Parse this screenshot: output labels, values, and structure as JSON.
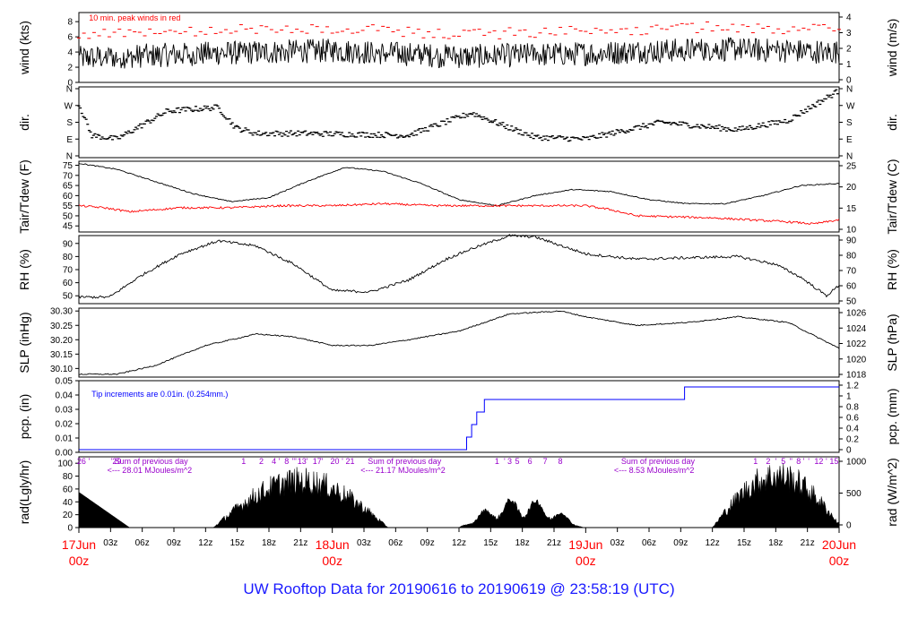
{
  "title": "UW Rooftop Data for 20190616  to  20190619 @ 23:58:19  (UTC)",
  "colors": {
    "trace": "#000000",
    "peak": "#ff0000",
    "dew": "#ff0000",
    "pcp": "#0000ff",
    "purple": "#9900cc",
    "date": "#ff0000",
    "title": "#1a1aff"
  },
  "x_axis": {
    "hour_ticks": [
      "03z",
      "06z",
      "09z",
      "12z",
      "15z",
      "18z",
      "21z",
      "03z",
      "06z",
      "09z",
      "12z",
      "15z",
      "18z",
      "21z",
      "03z",
      "06z",
      "09z",
      "12z",
      "15z",
      "18z",
      "21z"
    ],
    "hour_tick_pos": [
      1,
      2,
      3,
      4,
      5,
      6,
      7,
      9,
      10,
      11,
      12,
      13,
      14,
      15,
      17,
      18,
      19,
      20,
      21,
      22,
      23
    ],
    "day_labels": [
      {
        "date": "17Jun",
        "hour": "00z",
        "pos": 0
      },
      {
        "date": "18Jun",
        "hour": "00z",
        "pos": 8
      },
      {
        "date": "19Jun",
        "hour": "00z",
        "pos": 16
      },
      {
        "date": "20Jun",
        "hour": "00z",
        "pos": 24
      }
    ]
  },
  "chart_data": [
    {
      "type": "line",
      "panel": "wind",
      "ylabel_left": "wind (kts)",
      "ylabel_right": "wind (m/s)",
      "yticks_left": [
        "0",
        "2",
        "4",
        "6",
        "8"
      ],
      "ylim_left": [
        0,
        9.2
      ],
      "yticks_right": [
        "0",
        "1",
        "2",
        "3",
        "4"
      ],
      "annotation": "10 min. peak winds in red",
      "series_profile": {
        "x_days": [
          0,
          0.5,
          1,
          1.5,
          2,
          2.5,
          3
        ],
        "mean": [
          3.2,
          3.8,
          4.2,
          3.4,
          3.8,
          4.4,
          4.0
        ]
      }
    },
    {
      "type": "scatter",
      "panel": "dir",
      "ylabel_left": "dir.",
      "ylabel_right": "dir.",
      "yticks_left": [
        "N",
        "E",
        "S",
        "W",
        "N"
      ],
      "yticks_right": [
        "N",
        "E",
        "S",
        "W",
        "N"
      ],
      "series_profile": {
        "x_days": [
          0,
          0.05,
          0.15,
          0.35,
          0.55,
          0.62,
          0.7,
          0.9,
          1.3,
          1.55,
          1.7,
          1.8,
          2.0,
          2.3,
          2.6,
          2.8,
          3.0
        ],
        "dir_deg": [
          280,
          110,
          90,
          240,
          260,
          150,
          120,
          120,
          110,
          230,
          150,
          100,
          90,
          180,
          140,
          190,
          350
        ]
      }
    },
    {
      "type": "line",
      "panel": "temp",
      "ylabel_left": "Tair/Tdew (F)",
      "ylabel_right": "Tair/Tdew (C)",
      "yticks_left": [
        "45",
        "50",
        "55",
        "60",
        "65",
        "70",
        "75"
      ],
      "ylim_left": [
        42,
        77
      ],
      "yticks_right": [
        "10",
        "15",
        "20",
        "25"
      ],
      "series": [
        {
          "role": "air",
          "x_days": [
            0,
            0.15,
            0.3,
            0.45,
            0.6,
            0.75,
            0.9,
            1.05,
            1.2,
            1.35,
            1.5,
            1.65,
            1.8,
            1.95,
            2.1,
            2.25,
            2.4,
            2.55,
            2.7,
            2.85,
            3.0
          ],
          "values": [
            76,
            73,
            67,
            61,
            57,
            59,
            67,
            74,
            72,
            66,
            58,
            55,
            60,
            63,
            62,
            58,
            56,
            56,
            60,
            65,
            66
          ]
        },
        {
          "role": "dew",
          "x_days": [
            0,
            0.1,
            0.2,
            0.4,
            0.6,
            0.8,
            1.0,
            1.2,
            1.4,
            1.6,
            1.8,
            2.0,
            2.1,
            2.2,
            2.5,
            2.8,
            2.9,
            3.0
          ],
          "values": [
            55,
            54,
            52,
            54,
            54,
            55,
            55,
            56,
            55,
            55,
            55,
            55,
            53,
            50,
            49,
            47,
            46,
            48
          ]
        }
      ]
    },
    {
      "type": "line",
      "panel": "rh",
      "ylabel_left": "RH (%)",
      "ylabel_right": "RH (%)",
      "yticks_left": [
        "50",
        "60",
        "70",
        "80",
        "90"
      ],
      "ylim_left": [
        44,
        96
      ],
      "yticks_right": [
        "50",
        "60",
        "70",
        "80",
        "90"
      ],
      "series_profile": {
        "x_days": [
          0,
          0.12,
          0.25,
          0.4,
          0.55,
          0.7,
          0.85,
          1.0,
          1.15,
          1.3,
          1.45,
          1.55,
          1.7,
          1.8,
          2.0,
          2.2,
          2.4,
          2.6,
          2.75,
          2.85,
          2.95,
          3.0
        ],
        "values": [
          49,
          49,
          66,
          82,
          92,
          88,
          74,
          54,
          53,
          62,
          78,
          86,
          96,
          95,
          82,
          78,
          79,
          80,
          74,
          64,
          50,
          58
        ]
      }
    },
    {
      "type": "line",
      "panel": "slp",
      "ylabel_left": "SLP (inHg)",
      "ylabel_right": "SLP (hPa)",
      "yticks_left": [
        "30.10",
        "30.15",
        "30.20",
        "30.25",
        "30.30"
      ],
      "ylim_left": [
        30.07,
        30.31
      ],
      "yticks_right": [
        "1018",
        "1020",
        "1022",
        "1024",
        "1026"
      ],
      "series_profile": {
        "x_days": [
          0,
          0.15,
          0.3,
          0.5,
          0.7,
          0.85,
          1.0,
          1.15,
          1.3,
          1.5,
          1.7,
          1.9,
          2.0,
          2.2,
          2.4,
          2.6,
          2.8,
          3.0
        ],
        "values": [
          30.08,
          30.08,
          30.11,
          30.18,
          30.22,
          30.21,
          30.18,
          30.18,
          30.2,
          30.23,
          30.29,
          30.3,
          30.28,
          30.25,
          30.26,
          30.28,
          30.26,
          30.17
        ]
      }
    },
    {
      "type": "line",
      "panel": "pcp",
      "ylabel_left": "pcp. (in)",
      "ylabel_right": "pcp. (mm)",
      "yticks_left": [
        "0.00",
        "0.01",
        "0.02",
        "0.03",
        "0.04",
        "0.05"
      ],
      "ylim_left": [
        0,
        0.05
      ],
      "yticks_right": [
        "0",
        "0.2",
        "0.4",
        "0.6",
        "0.8",
        "1",
        "1.2"
      ],
      "annotation": "Tip increments are 0.01in. (0.254mm.)",
      "step_x_days": [
        0,
        1.53,
        1.55,
        1.57,
        1.6,
        1.62,
        2.39,
        3.0
      ],
      "step_values": [
        0,
        0.01,
        0.02,
        0.03,
        0.04,
        0.04,
        0.05,
        0.05
      ]
    },
    {
      "type": "area",
      "panel": "rad",
      "ylabel_left": "rad(Lgly/hr)",
      "ylabel_right": "rad (W/m^2)",
      "yticks_left": [
        "0",
        "20",
        "40",
        "60",
        "80",
        "100"
      ],
      "ylim_left": [
        0,
        110
      ],
      "yticks_right": [
        "0",
        "500",
        "1000"
      ],
      "sums": [
        {
          "line1": "Sum of previous day",
          "line2": "<--- 28.01 MJoules/m^2",
          "at_day": 0.14
        },
        {
          "line1": "Sum of previous day",
          "line2": "<--- 21.17 MJoules/m^2",
          "at_day": 1.14
        },
        {
          "line1": "Sum of previous day",
          "line2": "<--- 8.53 MJoules/m^2",
          "at_day": 2.14
        }
      ],
      "top_markers": [
        {
          "t": "26",
          "d": 0.01
        },
        {
          "t": "'",
          "d": 0.04
        },
        {
          "t": "'",
          "d": 0.13
        },
        {
          "t": "29",
          "d": 0.15
        },
        {
          "t": "1",
          "d": 0.65
        },
        {
          "t": "2",
          "d": 0.72
        },
        {
          "t": "4",
          "d": 0.77
        },
        {
          "t": "'",
          "d": 0.79
        },
        {
          "t": "8",
          "d": 0.82
        },
        {
          "t": "'''",
          "d": 0.85
        },
        {
          "t": "13",
          "d": 0.88
        },
        {
          "t": "'",
          "d": 0.9
        },
        {
          "t": "17",
          "d": 0.94
        },
        {
          "t": "'",
          "d": 0.96
        },
        {
          "t": "20",
          "d": 1.01
        },
        {
          "t": "'",
          "d": 1.04
        },
        {
          "t": "21",
          "d": 1.07
        },
        {
          "t": "1",
          "d": 1.65
        },
        {
          "t": "'",
          "d": 1.68
        },
        {
          "t": "3",
          "d": 1.7
        },
        {
          "t": "5",
          "d": 1.73
        },
        {
          "t": "6",
          "d": 1.78
        },
        {
          "t": "7",
          "d": 1.84
        },
        {
          "t": "8",
          "d": 1.9
        },
        {
          "t": "1",
          "d": 2.67
        },
        {
          "t": "2",
          "d": 2.72
        },
        {
          "t": "'",
          "d": 2.75
        },
        {
          "t": "5",
          "d": 2.78
        },
        {
          "t": "''",
          "d": 2.81
        },
        {
          "t": "8",
          "d": 2.84
        },
        {
          "t": "'",
          "d": 2.86
        },
        {
          "t": "'",
          "d": 2.88
        },
        {
          "t": "12",
          "d": 2.92
        },
        {
          "t": "'",
          "d": 2.95
        },
        {
          "t": "15",
          "d": 2.98
        }
      ]
    }
  ]
}
